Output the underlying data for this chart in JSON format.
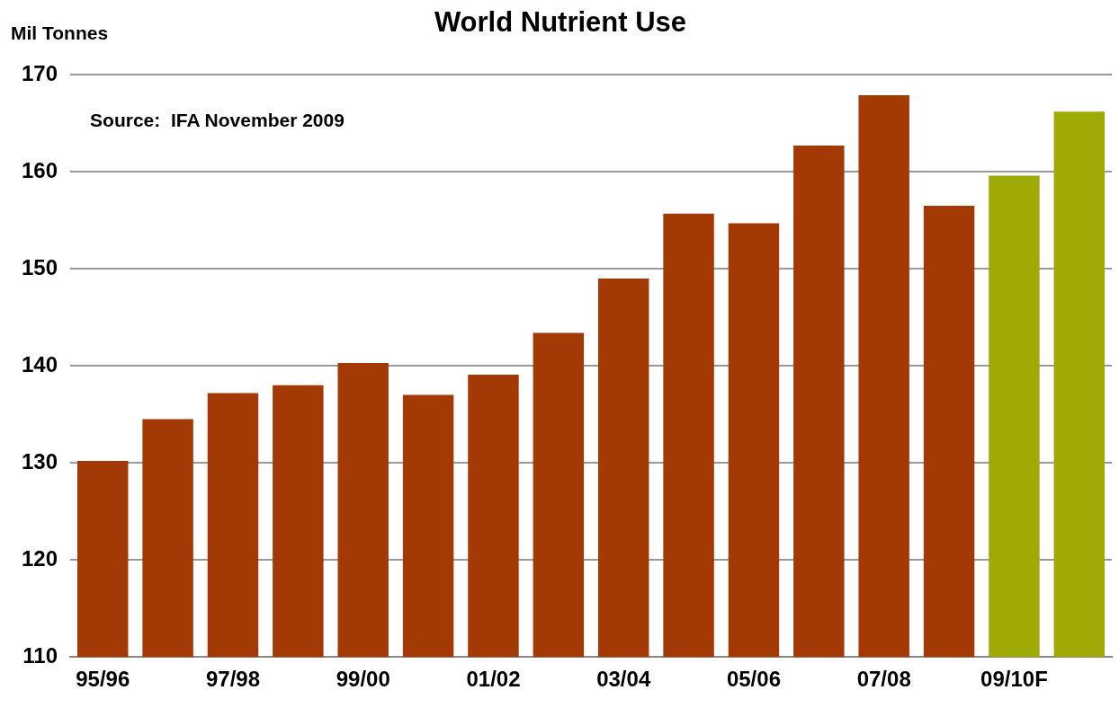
{
  "chart_data": {
    "type": "bar",
    "title": "World Nutrient Use",
    "ylabel": "Mil Tonnes",
    "annotations": [
      "Source:  IFA November 2009"
    ],
    "categories": [
      "95/96",
      null,
      "97/98",
      null,
      "99/00",
      null,
      "01/02",
      null,
      "03/04",
      null,
      "05/06",
      null,
      "07/08",
      null,
      "09/10F",
      null
    ],
    "values": [
      130.2,
      134.5,
      137.2,
      138.0,
      140.3,
      137.0,
      139.1,
      143.4,
      149.0,
      155.7,
      154.7,
      162.7,
      167.9,
      156.5,
      159.6,
      166.2
    ],
    "colors": [
      "#a33a06",
      "#a33a06",
      "#a33a06",
      "#a33a06",
      "#a33a06",
      "#a33a06",
      "#a33a06",
      "#a33a06",
      "#a33a06",
      "#a33a06",
      "#a33a06",
      "#a33a06",
      "#a33a06",
      "#a33a06",
      "#a0aa06",
      "#a0aa06"
    ],
    "ylim": [
      110,
      170
    ],
    "yticks": [
      110,
      120,
      130,
      140,
      150,
      160,
      170
    ],
    "grid": "y",
    "legend": false
  }
}
